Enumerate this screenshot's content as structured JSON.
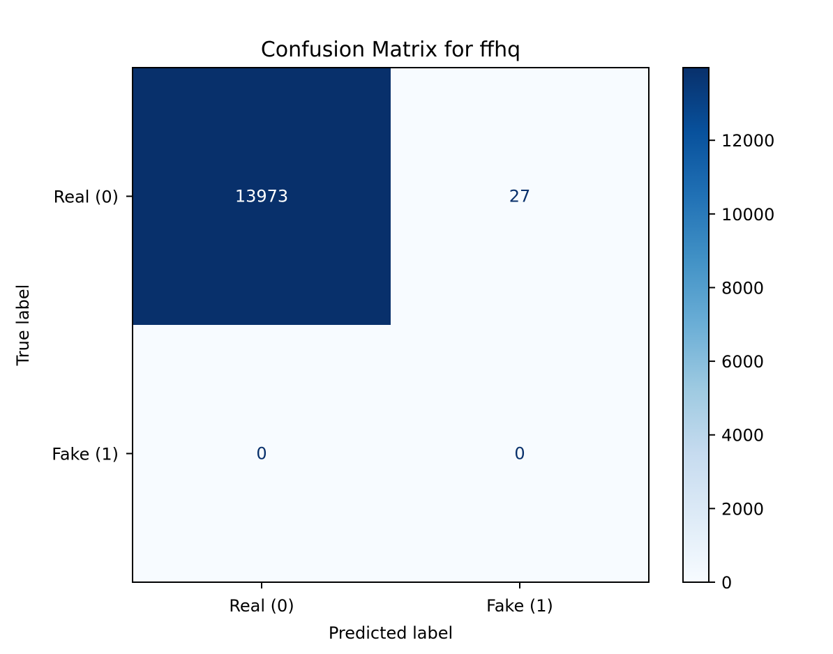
{
  "chart_data": {
    "type": "heatmap",
    "title": "Confusion Matrix for ffhq",
    "xlabel": "Predicted label",
    "ylabel": "True label",
    "x_categories": [
      "Real (0)",
      "Fake (1)"
    ],
    "y_categories": [
      "Real (0)",
      "Fake (1)"
    ],
    "values": [
      [
        13973,
        27
      ],
      [
        0,
        0
      ]
    ],
    "colormap": "Blues",
    "colormap_stops": [
      "#f7fbff",
      "#deebf7",
      "#c6dbef",
      "#9ecae1",
      "#6baed6",
      "#4292c6",
      "#2171b5",
      "#08519c",
      "#08306b"
    ],
    "colorbar": {
      "range": [
        0,
        13973
      ],
      "ticks": [
        0,
        2000,
        4000,
        6000,
        8000,
        10000,
        12000
      ]
    }
  }
}
